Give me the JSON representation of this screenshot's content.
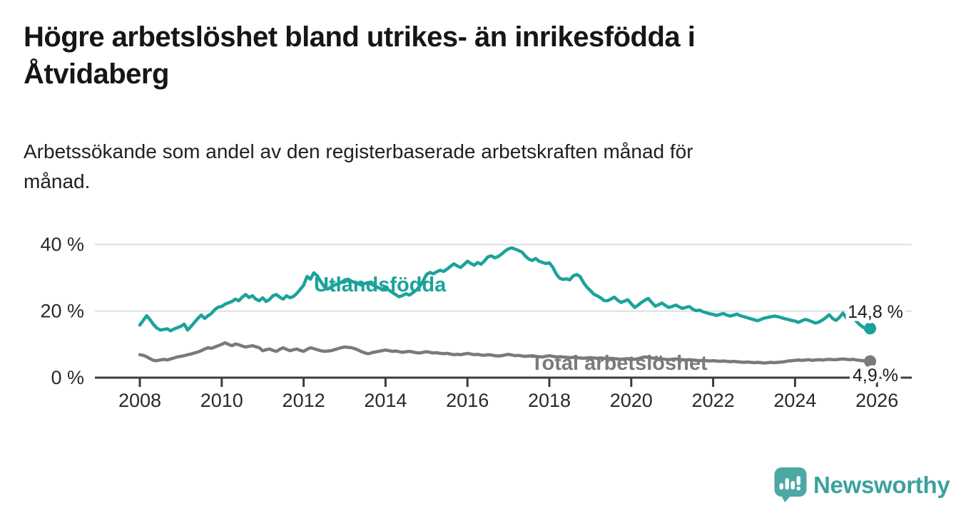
{
  "chart_data": {
    "type": "line",
    "title": "Högre arbetslöshet bland utrikes- än inrikesfödda i Åtvidaberg",
    "subtitle": "Arbetssökande som andel av den registerbaserade arbetskraften månad för månad.",
    "frequency": "monthly",
    "x_start": "2008-01",
    "x_end": "2025-11",
    "grid": "horizontal",
    "legend": "inline-labels",
    "x_axis": {
      "ticks": [
        "2008",
        "2010",
        "2012",
        "2014",
        "2016",
        "2018",
        "2020",
        "2022",
        "2024",
        "2026"
      ]
    },
    "y_axis": {
      "unit": "%",
      "ylim": [
        0,
        42
      ],
      "ticks": [
        {
          "value": 0,
          "label": "0 %"
        },
        {
          "value": 20,
          "label": "20 %"
        },
        {
          "value": 40,
          "label": "40 %"
        }
      ]
    },
    "series": [
      {
        "id": "utlandsfodda",
        "name": "Utlandsfödda",
        "color": "#1ba39a",
        "end_label": "14,8 %",
        "end_value": 14.8,
        "values": [
          15.8,
          17.2,
          18.6,
          17.4,
          16.0,
          14.9,
          14.3,
          14.5,
          14.7,
          14.1,
          14.6,
          15.0,
          15.4,
          16.1,
          14.3,
          15.4,
          16.6,
          17.8,
          18.8,
          17.8,
          18.6,
          19.3,
          20.5,
          21.2,
          21.4,
          22.1,
          22.5,
          22.9,
          23.6,
          23.1,
          24.2,
          25.0,
          24.1,
          24.6,
          23.6,
          23.1,
          24.0,
          22.9,
          23.5,
          24.6,
          25.0,
          24.2,
          23.6,
          24.6,
          24.0,
          24.4,
          25.3,
          26.5,
          27.8,
          30.4,
          29.6,
          31.5,
          30.6,
          28.9,
          27.4,
          26.6,
          27.2,
          27.8,
          28.2,
          28.6,
          29.3,
          29.6,
          29.0,
          28.6,
          28.2,
          27.8,
          28.3,
          28.6,
          28.0,
          27.5,
          27.0,
          26.6,
          26.9,
          26.3,
          25.6,
          24.9,
          24.3,
          24.7,
          25.2,
          24.8,
          25.5,
          26.3,
          27.4,
          29.0,
          31.0,
          31.6,
          31.2,
          31.8,
          32.3,
          31.9,
          32.6,
          33.4,
          34.2,
          33.6,
          33.1,
          34.0,
          35.0,
          34.3,
          33.8,
          34.6,
          34.1,
          35.1,
          36.3,
          36.6,
          36.0,
          36.4,
          37.1,
          38.0,
          38.7,
          39.0,
          38.6,
          38.2,
          37.7,
          36.5,
          35.6,
          35.2,
          35.8,
          35.0,
          34.6,
          34.3,
          34.5,
          33.2,
          31.2,
          29.9,
          29.5,
          29.7,
          29.4,
          30.6,
          31.0,
          30.4,
          28.6,
          27.2,
          26.2,
          25.1,
          24.6,
          24.0,
          23.2,
          23.1,
          23.6,
          24.2,
          23.3,
          22.6,
          23.0,
          23.4,
          22.2,
          21.1,
          21.8,
          22.6,
          23.3,
          23.8,
          22.6,
          21.5,
          21.9,
          22.4,
          21.7,
          21.1,
          21.4,
          21.8,
          21.3,
          20.8,
          21.1,
          21.4,
          20.6,
          20.1,
          20.3,
          19.8,
          19.5,
          19.2,
          19.0,
          18.7,
          19.0,
          19.3,
          18.8,
          18.5,
          18.8,
          19.1,
          18.6,
          18.3,
          18.0,
          17.7,
          17.4,
          17.1,
          17.5,
          17.9,
          18.1,
          18.3,
          18.5,
          18.3,
          18.0,
          17.7,
          17.5,
          17.2,
          17.0,
          16.6,
          17.1,
          17.5,
          17.2,
          16.8,
          16.4,
          16.7,
          17.3,
          18.0,
          18.9,
          17.8,
          17.2,
          18.1,
          19.4,
          18.0,
          17.5,
          18.2,
          16.9,
          15.9,
          15.1,
          14.6,
          14.8
        ]
      },
      {
        "id": "total-arbetsloshet",
        "name": "Total arbetslöshet",
        "color": "#7a7a7e",
        "end_label": "4,9 %",
        "end_value": 4.9,
        "values": [
          6.9,
          6.7,
          6.3,
          5.7,
          5.2,
          5.1,
          5.3,
          5.5,
          5.3,
          5.6,
          5.9,
          6.2,
          6.4,
          6.6,
          6.9,
          7.1,
          7.4,
          7.7,
          8.1,
          8.6,
          9.0,
          8.8,
          9.2,
          9.6,
          10.0,
          10.5,
          10.0,
          9.6,
          10.1,
          9.9,
          9.5,
          9.2,
          9.4,
          9.6,
          9.3,
          9.0,
          8.1,
          8.4,
          8.6,
          8.2,
          7.9,
          8.5,
          9.0,
          8.5,
          8.1,
          8.4,
          8.6,
          8.2,
          7.9,
          8.5,
          9.0,
          8.7,
          8.4,
          8.1,
          7.9,
          8.0,
          8.1,
          8.4,
          8.7,
          9.0,
          9.2,
          9.1,
          9.0,
          8.7,
          8.3,
          7.8,
          7.4,
          7.2,
          7.5,
          7.7,
          7.9,
          8.1,
          8.3,
          8.1,
          7.9,
          8.0,
          7.8,
          7.6,
          7.8,
          7.9,
          7.7,
          7.5,
          7.4,
          7.6,
          7.8,
          7.6,
          7.4,
          7.5,
          7.3,
          7.2,
          7.3,
          7.1,
          6.9,
          7.0,
          6.9,
          7.1,
          7.3,
          7.1,
          6.9,
          7.0,
          6.8,
          6.7,
          6.9,
          6.8,
          6.6,
          6.5,
          6.6,
          6.8,
          7.0,
          6.8,
          6.6,
          6.7,
          6.5,
          6.4,
          6.5,
          6.6,
          6.4,
          6.3,
          6.2,
          6.4,
          6.6,
          6.4,
          6.2,
          6.3,
          6.2,
          6.1,
          6.0,
          6.1,
          6.0,
          5.9,
          5.8,
          5.9,
          6.0,
          5.9,
          5.8,
          5.9,
          5.8,
          5.7,
          5.8,
          5.7,
          5.6,
          5.5,
          5.6,
          5.7,
          5.6,
          5.5,
          5.7,
          6.0,
          6.2,
          6.1,
          5.9,
          5.8,
          5.7,
          5.6,
          5.5,
          5.4,
          5.5,
          5.6,
          5.5,
          5.4,
          5.3,
          5.4,
          5.3,
          5.2,
          5.1,
          5.2,
          5.1,
          5.0,
          5.1,
          5.0,
          4.9,
          5.0,
          4.9,
          4.8,
          4.9,
          4.8,
          4.7,
          4.6,
          4.7,
          4.6,
          4.5,
          4.6,
          4.5,
          4.4,
          4.5,
          4.6,
          4.5,
          4.6,
          4.7,
          4.8,
          5.0,
          5.1,
          5.2,
          5.3,
          5.2,
          5.3,
          5.4,
          5.2,
          5.3,
          5.4,
          5.3,
          5.4,
          5.5,
          5.4,
          5.4,
          5.5,
          5.6,
          5.5,
          5.4,
          5.5,
          5.3,
          5.2,
          5.1,
          5.0,
          4.9
        ]
      }
    ]
  },
  "footer": {
    "brand": "Newsworthy"
  }
}
